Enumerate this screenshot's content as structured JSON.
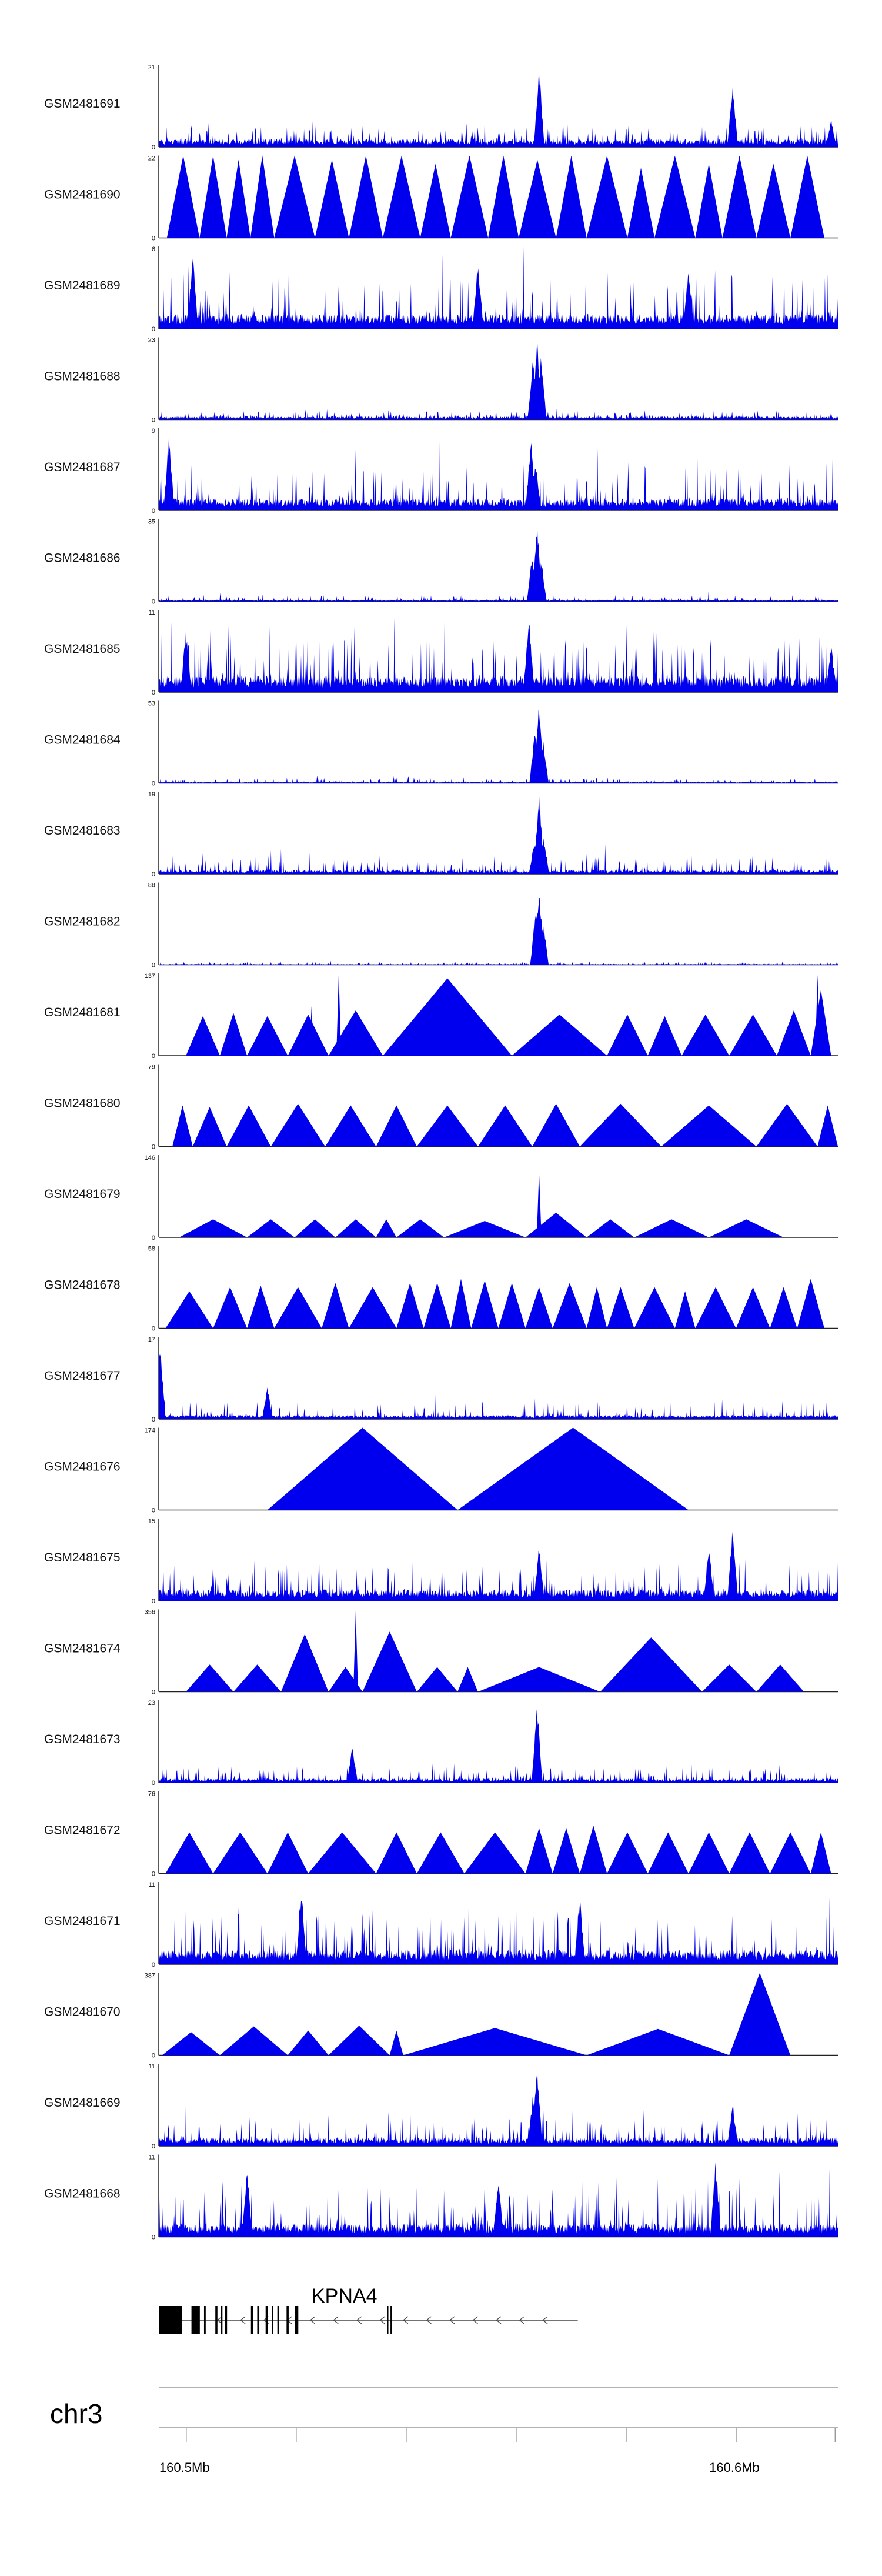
{
  "figure": {
    "chromosome": "chr3",
    "axis_ticks": [
      "160.5Mb",
      "160.6Mb"
    ],
    "gene": {
      "name": "KPNA4",
      "strand": "-"
    }
  },
  "chart_data": {
    "type": "area",
    "title": "",
    "xlabel": "chr3",
    "region_mb": [
      160.495,
      160.6185
    ],
    "tracks": [
      {
        "name": "GSM2481691",
        "ymax": 21,
        "kind": "dense",
        "seed": 91,
        "base": 0.1,
        "noise": 0.18,
        "peaks": [
          [
            0.56,
            1.0
          ],
          [
            0.845,
            0.8
          ],
          [
            0.99,
            0.35
          ]
        ]
      },
      {
        "name": "GSM2481690",
        "ymax": 22,
        "kind": "triangles",
        "seed": 90,
        "base": 0.0,
        "noise": 0.0,
        "peaks": []
      },
      {
        "name": "GSM2481689",
        "ymax": 6,
        "kind": "dense",
        "seed": 89,
        "base": 0.18,
        "noise": 0.55,
        "peaks": [
          [
            0.05,
            0.95
          ],
          [
            0.47,
            0.85
          ],
          [
            0.78,
            0.75
          ]
        ]
      },
      {
        "name": "GSM2481688",
        "ymax": 23,
        "kind": "dense",
        "seed": 88,
        "base": 0.04,
        "noise": 0.08,
        "peaks": [
          [
            0.557,
            1.0
          ],
          [
            0.551,
            0.75
          ],
          [
            0.563,
            0.8
          ]
        ]
      },
      {
        "name": "GSM2481687",
        "ymax": 9,
        "kind": "dense",
        "seed": 87,
        "base": 0.15,
        "noise": 0.45,
        "peaks": [
          [
            0.015,
            0.95
          ],
          [
            0.548,
            0.9
          ],
          [
            0.555,
            0.6
          ]
        ]
      },
      {
        "name": "GSM2481686",
        "ymax": 35,
        "kind": "dense",
        "seed": 86,
        "base": 0.02,
        "noise": 0.06,
        "peaks": [
          [
            0.557,
            1.0
          ],
          [
            0.55,
            0.6
          ],
          [
            0.563,
            0.55
          ]
        ]
      },
      {
        "name": "GSM2481685",
        "ymax": 11,
        "kind": "dense",
        "seed": 85,
        "base": 0.2,
        "noise": 0.55,
        "peaks": [
          [
            0.545,
            0.95
          ],
          [
            0.04,
            0.8
          ],
          [
            0.99,
            0.6
          ]
        ]
      },
      {
        "name": "GSM2481684",
        "ymax": 53,
        "kind": "dense",
        "seed": 84,
        "base": 0.02,
        "noise": 0.05,
        "peaks": [
          [
            0.56,
            1.0
          ],
          [
            0.554,
            0.7
          ],
          [
            0.566,
            0.55
          ]
        ]
      },
      {
        "name": "GSM2481683",
        "ymax": 19,
        "kind": "dense",
        "seed": 83,
        "base": 0.05,
        "noise": 0.18,
        "peaks": [
          [
            0.56,
            1.0
          ],
          [
            0.553,
            0.4
          ],
          [
            0.567,
            0.45
          ]
        ]
      },
      {
        "name": "GSM2481682",
        "ymax": 88,
        "kind": "dense",
        "seed": 82,
        "base": 0.01,
        "noise": 0.03,
        "peaks": [
          [
            0.56,
            1.0
          ],
          [
            0.555,
            0.7
          ],
          [
            0.566,
            0.55
          ]
        ]
      },
      {
        "name": "GSM2481681",
        "ymax": 137,
        "kind": "triangles",
        "seed": 81,
        "base": 0.0,
        "noise": 0.0,
        "peaks": [
          [
            0.265,
            1.0
          ],
          [
            0.97,
            0.98
          ],
          [
            0.225,
            0.6
          ]
        ]
      },
      {
        "name": "GSM2481680",
        "ymax": 79,
        "kind": "triangles",
        "seed": 80,
        "base": 0.0,
        "noise": 0.0,
        "peaks": []
      },
      {
        "name": "GSM2481679",
        "ymax": 146,
        "kind": "triangles",
        "seed": 79,
        "base": 0.0,
        "noise": 0.0,
        "peaks": [
          [
            0.56,
            0.8
          ]
        ]
      },
      {
        "name": "GSM2481678",
        "ymax": 58,
        "kind": "triangles",
        "seed": 78,
        "base": 0.0,
        "noise": 0.0,
        "peaks": []
      },
      {
        "name": "GSM2481677",
        "ymax": 17,
        "kind": "dense",
        "seed": 77,
        "base": 0.05,
        "noise": 0.18,
        "peaks": [
          [
            0.002,
            0.95
          ],
          [
            0.16,
            0.4
          ]
        ]
      },
      {
        "name": "GSM2481676",
        "ymax": 174,
        "kind": "triangles",
        "seed": 76,
        "base": 0.0,
        "noise": 0.0,
        "peaks": []
      },
      {
        "name": "GSM2481675",
        "ymax": 15,
        "kind": "dense",
        "seed": 75,
        "base": 0.14,
        "noise": 0.35,
        "peaks": [
          [
            0.845,
            0.95
          ],
          [
            0.81,
            0.7
          ],
          [
            0.56,
            0.7
          ]
        ]
      },
      {
        "name": "GSM2481674",
        "ymax": 356,
        "kind": "triangles",
        "seed": 74,
        "base": 0.0,
        "noise": 0.0,
        "peaks": [
          [
            0.29,
            0.98
          ]
        ]
      },
      {
        "name": "GSM2481673",
        "ymax": 23,
        "kind": "dense",
        "seed": 73,
        "base": 0.05,
        "noise": 0.16,
        "peaks": [
          [
            0.557,
            1.0
          ],
          [
            0.285,
            0.45
          ]
        ]
      },
      {
        "name": "GSM2481672",
        "ymax": 76,
        "kind": "triangles",
        "seed": 72,
        "base": 0.0,
        "noise": 0.0,
        "peaks": []
      },
      {
        "name": "GSM2481671",
        "ymax": 11,
        "kind": "dense",
        "seed": 71,
        "base": 0.18,
        "noise": 0.55,
        "peaks": [
          [
            0.21,
            0.95
          ],
          [
            0.62,
            0.85
          ]
        ]
      },
      {
        "name": "GSM2481670",
        "ymax": 387,
        "kind": "triangles",
        "seed": 70,
        "base": 0.0,
        "noise": 0.0,
        "peaks": []
      },
      {
        "name": "GSM2481669",
        "ymax": 11,
        "kind": "dense",
        "seed": 69,
        "base": 0.1,
        "noise": 0.28,
        "peaks": [
          [
            0.557,
            1.0
          ],
          [
            0.551,
            0.65
          ],
          [
            0.845,
            0.55
          ]
        ]
      },
      {
        "name": "GSM2481668",
        "ymax": 11,
        "kind": "dense",
        "seed": 68,
        "base": 0.16,
        "noise": 0.5,
        "peaks": [
          [
            0.82,
            0.95
          ],
          [
            0.13,
            0.85
          ],
          [
            0.5,
            0.75
          ]
        ]
      }
    ],
    "triangle_tracks": {
      "GSM2481690": [
        [
          0.012,
          0.06,
          1
        ],
        [
          0.06,
          0.1,
          1
        ],
        [
          0.1,
          0.135,
          0.95
        ],
        [
          0.135,
          0.17,
          1
        ],
        [
          0.17,
          0.23,
          1
        ],
        [
          0.23,
          0.28,
          0.95
        ],
        [
          0.28,
          0.33,
          1
        ],
        [
          0.33,
          0.385,
          1
        ],
        [
          0.385,
          0.43,
          0.9
        ],
        [
          0.43,
          0.485,
          1
        ],
        [
          0.485,
          0.53,
          1
        ],
        [
          0.53,
          0.585,
          0.95
        ],
        [
          0.585,
          0.63,
          1
        ],
        [
          0.63,
          0.69,
          1
        ],
        [
          0.69,
          0.73,
          0.85
        ],
        [
          0.73,
          0.79,
          1
        ],
        [
          0.79,
          0.83,
          0.9
        ],
        [
          0.83,
          0.88,
          1
        ],
        [
          0.88,
          0.93,
          0.9
        ],
        [
          0.93,
          0.98,
          1
        ]
      ],
      "GSM2481681": [
        [
          0.04,
          0.09,
          0.48
        ],
        [
          0.09,
          0.13,
          0.52
        ],
        [
          0.13,
          0.19,
          0.48
        ],
        [
          0.19,
          0.25,
          0.5
        ],
        [
          0.25,
          0.33,
          0.55
        ],
        [
          0.33,
          0.52,
          0.94
        ],
        [
          0.52,
          0.66,
          0.5
        ],
        [
          0.66,
          0.72,
          0.5
        ],
        [
          0.72,
          0.77,
          0.48
        ],
        [
          0.77,
          0.84,
          0.5
        ],
        [
          0.84,
          0.91,
          0.5
        ],
        [
          0.91,
          0.96,
          0.55
        ],
        [
          0.96,
          0.99,
          0.8
        ]
      ],
      "GSM2481680": [
        [
          0.02,
          0.05,
          0.5
        ],
        [
          0.05,
          0.1,
          0.48
        ],
        [
          0.1,
          0.165,
          0.5
        ],
        [
          0.165,
          0.245,
          0.52
        ],
        [
          0.245,
          0.32,
          0.5
        ],
        [
          0.32,
          0.38,
          0.5
        ],
        [
          0.38,
          0.47,
          0.5
        ],
        [
          0.47,
          0.55,
          0.5
        ],
        [
          0.55,
          0.62,
          0.52
        ],
        [
          0.62,
          0.74,
          0.52
        ],
        [
          0.74,
          0.88,
          0.5
        ],
        [
          0.88,
          0.97,
          0.52
        ],
        [
          0.97,
          1.0,
          0.5
        ]
      ],
      "GSM2481679": [
        [
          0.03,
          0.13,
          0.22
        ],
        [
          0.13,
          0.2,
          0.22
        ],
        [
          0.2,
          0.26,
          0.22
        ],
        [
          0.26,
          0.32,
          0.22
        ],
        [
          0.32,
          0.35,
          0.22
        ],
        [
          0.35,
          0.42,
          0.22
        ],
        [
          0.42,
          0.54,
          0.2
        ],
        [
          0.54,
          0.63,
          0.3
        ],
        [
          0.63,
          0.7,
          0.22
        ],
        [
          0.7,
          0.81,
          0.22
        ],
        [
          0.81,
          0.92,
          0.22
        ]
      ],
      "GSM2481678": [
        [
          0.01,
          0.08,
          0.45
        ],
        [
          0.08,
          0.13,
          0.5
        ],
        [
          0.13,
          0.17,
          0.52
        ],
        [
          0.17,
          0.24,
          0.5
        ],
        [
          0.24,
          0.28,
          0.55
        ],
        [
          0.28,
          0.35,
          0.5
        ],
        [
          0.35,
          0.39,
          0.55
        ],
        [
          0.39,
          0.43,
          0.55
        ],
        [
          0.43,
          0.46,
          0.6
        ],
        [
          0.46,
          0.5,
          0.58
        ],
        [
          0.5,
          0.54,
          0.55
        ],
        [
          0.54,
          0.58,
          0.5
        ],
        [
          0.58,
          0.63,
          0.55
        ],
        [
          0.63,
          0.66,
          0.5
        ],
        [
          0.66,
          0.7,
          0.5
        ],
        [
          0.7,
          0.76,
          0.5
        ],
        [
          0.76,
          0.79,
          0.45
        ],
        [
          0.79,
          0.85,
          0.5
        ],
        [
          0.85,
          0.9,
          0.5
        ],
        [
          0.9,
          0.94,
          0.5
        ],
        [
          0.94,
          0.98,
          0.6
        ]
      ],
      "GSM2481676": [
        [
          0.16,
          0.44,
          1.0
        ],
        [
          0.44,
          0.78,
          1.0
        ]
      ],
      "GSM2481674": [
        [
          0.04,
          0.11,
          0.33
        ],
        [
          0.11,
          0.18,
          0.33
        ],
        [
          0.18,
          0.25,
          0.7
        ],
        [
          0.25,
          0.3,
          0.3
        ],
        [
          0.3,
          0.38,
          0.73
        ],
        [
          0.38,
          0.44,
          0.3
        ],
        [
          0.44,
          0.47,
          0.3
        ],
        [
          0.47,
          0.65,
          0.3
        ],
        [
          0.65,
          0.8,
          0.66
        ],
        [
          0.8,
          0.88,
          0.33
        ],
        [
          0.88,
          0.95,
          0.33
        ]
      ],
      "GSM2481672": [
        [
          0.01,
          0.08,
          0.5
        ],
        [
          0.08,
          0.16,
          0.5
        ],
        [
          0.16,
          0.22,
          0.5
        ],
        [
          0.22,
          0.32,
          0.5
        ],
        [
          0.32,
          0.38,
          0.5
        ],
        [
          0.38,
          0.45,
          0.5
        ],
        [
          0.45,
          0.54,
          0.5
        ],
        [
          0.54,
          0.58,
          0.55
        ],
        [
          0.58,
          0.62,
          0.55
        ],
        [
          0.62,
          0.66,
          0.58
        ],
        [
          0.66,
          0.72,
          0.5
        ],
        [
          0.72,
          0.78,
          0.5
        ],
        [
          0.78,
          0.84,
          0.5
        ],
        [
          0.84,
          0.9,
          0.5
        ],
        [
          0.9,
          0.96,
          0.5
        ],
        [
          0.96,
          0.99,
          0.5
        ]
      ],
      "GSM2481670": [
        [
          0.005,
          0.09,
          0.28
        ],
        [
          0.09,
          0.19,
          0.35
        ],
        [
          0.19,
          0.25,
          0.3
        ],
        [
          0.25,
          0.34,
          0.36
        ],
        [
          0.34,
          0.36,
          0.3
        ],
        [
          0.36,
          0.63,
          0.33
        ],
        [
          0.63,
          0.84,
          0.32
        ],
        [
          0.84,
          0.93,
          1.0
        ]
      ]
    },
    "gene_model": {
      "name": "KPNA4",
      "span_mb": [
        160.495,
        160.5712
      ],
      "exons": [
        [
          0.0,
          0.055
        ],
        [
          0.078,
          0.098
        ],
        [
          0.108,
          0.112
        ],
        [
          0.135,
          0.14
        ],
        [
          0.148,
          0.152
        ],
        [
          0.158,
          0.163
        ],
        [
          0.22,
          0.225
        ],
        [
          0.235,
          0.24
        ],
        [
          0.255,
          0.26
        ],
        [
          0.27,
          0.273
        ],
        [
          0.283,
          0.287
        ],
        [
          0.305,
          0.31
        ],
        [
          0.325,
          0.333
        ],
        [
          0.545,
          0.548
        ],
        [
          0.553,
          0.557
        ]
      ]
    },
    "axis_ticks_mb": [
      160.5,
      160.52,
      160.54,
      160.56,
      160.58,
      160.6,
      160.618
    ]
  }
}
